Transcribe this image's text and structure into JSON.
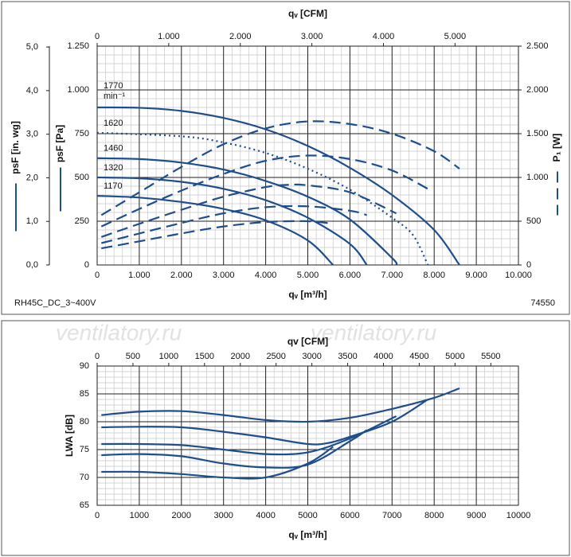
{
  "watermark": "ventilatory.ru",
  "chart_data": [
    {
      "type": "line",
      "model": "RH45C_DC_3~400V",
      "code": "74550",
      "x_label": "qᵥ [m³/h]",
      "x2_label": "qᵥ [CFM]",
      "y_label": "psF [Pa]",
      "y3_label": "psF [in. wg]",
      "y2_label": "P₁ [W]",
      "speed_unit": "min⁻¹",
      "xlim": [
        0,
        10000
      ],
      "xticks": [
        0,
        {
          "value": 1000,
          "label": "1.000"
        },
        {
          "value": 2000,
          "label": "2.000"
        },
        {
          "value": 3000,
          "label": "3.000"
        },
        {
          "value": 4000,
          "label": "4.000"
        },
        {
          "value": 5000,
          "label": "5.000"
        },
        {
          "value": 6000,
          "label": "6.000"
        },
        {
          "value": 7000,
          "label": "7.000"
        },
        {
          "value": 8000,
          "label": "8.000"
        },
        {
          "value": 9000,
          "label": "9.000"
        },
        {
          "value": 10000,
          "label": "10.000"
        }
      ],
      "x2lim": [
        0,
        5886
      ],
      "x2ticks": [
        0,
        {
          "value": 1000,
          "label": "1.000"
        },
        {
          "value": 2000,
          "label": "2.000"
        },
        {
          "value": 3000,
          "label": "3.000"
        },
        {
          "value": 4000,
          "label": "4.000"
        },
        {
          "value": 5000,
          "label": "5.000"
        }
      ],
      "ylim": [
        0,
        1250
      ],
      "yticks": [
        0,
        250,
        500,
        750,
        {
          "value": 1000,
          "label": "1.000"
        },
        {
          "value": 1250,
          "label": "1.250"
        }
      ],
      "y2lim": [
        0,
        2500
      ],
      "y2ticks": [
        0,
        500,
        {
          "value": 1000,
          "label": "1.000"
        },
        {
          "value": 1500,
          "label": "1.500"
        },
        {
          "value": 2000,
          "label": "2.000"
        },
        {
          "value": 2500,
          "label": "2.500"
        }
      ],
      "y3lim": [
        0,
        5.02
      ],
      "y3ticks": [
        {
          "value": 0,
          "label": "0,0"
        },
        {
          "value": 1,
          "label": "1,0"
        },
        {
          "value": 2,
          "label": "2,0"
        },
        {
          "value": 3,
          "label": "3,0"
        },
        {
          "value": 4,
          "label": "4,0"
        },
        {
          "value": 5,
          "label": "5,0"
        }
      ],
      "grid": true,
      "minor_divisions": 5,
      "series": [
        {
          "name": "1770",
          "color": "#1f4e8c",
          "style": "solid",
          "x": [
            0,
            1000,
            2000,
            3000,
            4000,
            5000,
            6000,
            7000,
            8000,
            8600
          ],
          "values": [
            900,
            898,
            880,
            840,
            775,
            680,
            555,
            400,
            200,
            0
          ]
        },
        {
          "name": "1620",
          "color": "#1f4e8c",
          "style": "dotted",
          "x": [
            0,
            2000,
            3000,
            4000,
            5000,
            6000,
            7000,
            7500,
            7850
          ],
          "values": [
            755,
            735,
            700,
            640,
            550,
            430,
            270,
            170,
            0
          ]
        },
        {
          "name": "1460",
          "color": "#1f4e8c",
          "style": "solid",
          "x": [
            0,
            1000,
            2000,
            3000,
            4000,
            5000,
            6000,
            7000,
            7100
          ],
          "values": [
            610,
            605,
            585,
            545,
            480,
            390,
            260,
            40,
            0
          ]
        },
        {
          "name": "1320",
          "color": "#1f4e8c",
          "style": "solid",
          "x": [
            0,
            1000,
            2000,
            3000,
            4000,
            5000,
            6000,
            6400
          ],
          "values": [
            500,
            495,
            475,
            435,
            370,
            270,
            120,
            0
          ]
        },
        {
          "name": "1170",
          "color": "#1f4e8c",
          "style": "solid",
          "x": [
            0,
            1000,
            2000,
            3000,
            4000,
            5000,
            5600
          ],
          "values": [
            395,
            385,
            360,
            320,
            255,
            140,
            0
          ]
        },
        {
          "color": "#1f4e8c",
          "style": "dashed",
          "axis": "y2",
          "x": [
            100,
            1000,
            2000,
            3000,
            4000,
            5000,
            6000,
            7000,
            8000,
            8600
          ],
          "values": [
            570,
            830,
            1120,
            1380,
            1560,
            1640,
            1610,
            1500,
            1300,
            1100
          ]
        },
        {
          "color": "#1f4e8c",
          "style": "dashed",
          "axis": "y2",
          "x": [
            100,
            1000,
            2000,
            3000,
            4000,
            5000,
            6000,
            7000,
            7850
          ],
          "values": [
            440,
            640,
            850,
            1040,
            1190,
            1250,
            1210,
            1080,
            870
          ]
        },
        {
          "color": "#1f4e8c",
          "style": "dashed",
          "axis": "y2",
          "x": [
            100,
            1000,
            2000,
            3000,
            4000,
            4500,
            5000,
            6000,
            7100
          ],
          "values": [
            320,
            470,
            630,
            780,
            890,
            915,
            910,
            830,
            590
          ]
        },
        {
          "color": "#1f4e8c",
          "style": "dashed",
          "axis": "y2",
          "x": [
            100,
            1000,
            2000,
            3000,
            4000,
            5000,
            6000,
            6400
          ],
          "values": [
            250,
            360,
            480,
            590,
            660,
            670,
            620,
            570
          ]
        },
        {
          "color": "#1f4e8c",
          "style": "dashed",
          "axis": "y2",
          "x": [
            100,
            1000,
            2000,
            3000,
            4000,
            5000,
            5600
          ],
          "values": [
            190,
            270,
            360,
            440,
            490,
            500,
            470
          ]
        }
      ]
    },
    {
      "type": "line",
      "x_label": "qᵥ [m³/h]",
      "x2_label": "qv [CFM]",
      "y_label": "LWA [dB]",
      "xlim": [
        0,
        10000
      ],
      "xticks": [
        0,
        1000,
        2000,
        3000,
        4000,
        5000,
        6000,
        7000,
        8000,
        9000,
        10000
      ],
      "x2lim": [
        0,
        5886
      ],
      "x2ticks": [
        0,
        500,
        1000,
        1500,
        2000,
        2500,
        3000,
        3500,
        4000,
        4500,
        5000,
        5500
      ],
      "ylim": [
        65,
        90
      ],
      "yticks": [
        65,
        70,
        75,
        80,
        85,
        90
      ],
      "grid": true,
      "minor_divisions": 5,
      "series": [
        {
          "color": "#1f4e8c",
          "style": "solid",
          "x": [
            100,
            1000,
            2000,
            3000,
            4000,
            5000,
            6000,
            7000,
            8000,
            8600
          ],
          "values": [
            81.2,
            81.8,
            81.9,
            81.2,
            80.3,
            80.0,
            80.7,
            82.3,
            84.3,
            86.0
          ]
        },
        {
          "color": "#1f4e8c",
          "style": "solid",
          "x": [
            100,
            1000,
            2000,
            3000,
            4000,
            5000,
            5500,
            6000,
            7000,
            7850
          ],
          "values": [
            79.0,
            79.1,
            79.0,
            78.2,
            77.2,
            76.0,
            76.2,
            77.3,
            80.0,
            84.0
          ]
        },
        {
          "color": "#1f4e8c",
          "style": "solid",
          "x": [
            100,
            1000,
            2000,
            3000,
            4000,
            5000,
            6000,
            7100
          ],
          "values": [
            76.0,
            76.0,
            75.8,
            75.0,
            74.2,
            74.5,
            77.0,
            81.0
          ]
        },
        {
          "color": "#1f4e8c",
          "style": "solid",
          "x": [
            100,
            1000,
            2000,
            3000,
            4000,
            5000,
            6000,
            6400
          ],
          "values": [
            74.0,
            74.2,
            73.8,
            72.5,
            71.8,
            72.3,
            76.5,
            78.5
          ]
        },
        {
          "color": "#1f4e8c",
          "style": "solid",
          "x": [
            100,
            1000,
            2000,
            3000,
            4000,
            5000,
            5600
          ],
          "values": [
            71.0,
            71.0,
            70.6,
            70.0,
            70.0,
            72.5,
            75.5
          ]
        }
      ]
    }
  ]
}
